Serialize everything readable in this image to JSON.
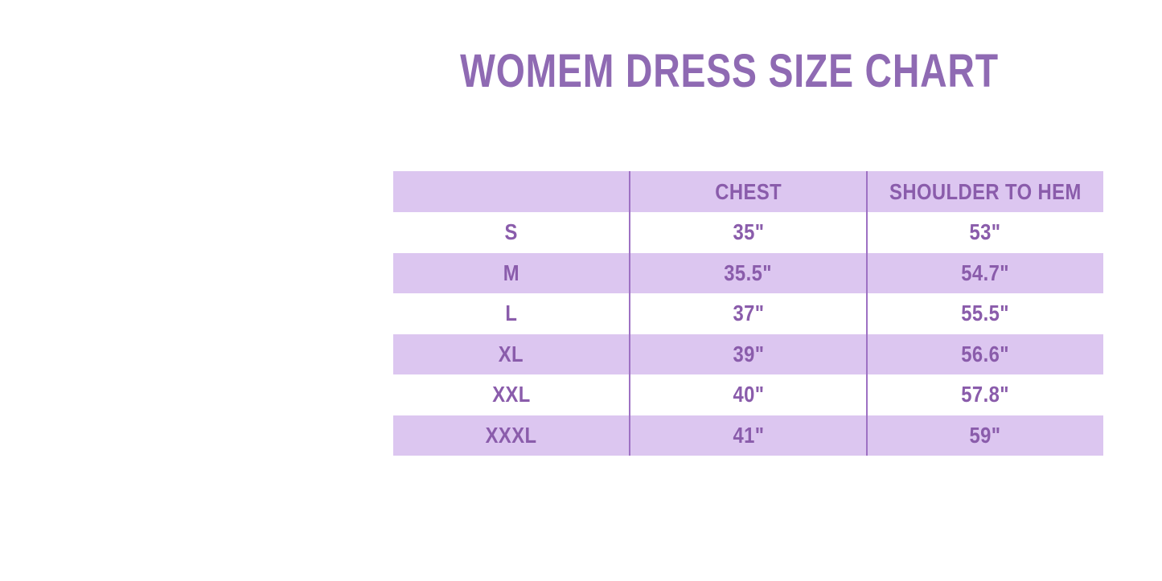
{
  "page": {
    "title": "WOMEM DRESS SIZE CHART"
  },
  "colors": {
    "title_text": "#8f6ab3",
    "cell_text": "#8a5cab",
    "row_shaded_bg": "#dcc6f0",
    "divider": "#9e71c3",
    "page_bg": "#ffffff"
  },
  "chart_data": {
    "type": "table",
    "title": "WOMEM DRESS SIZE CHART",
    "columns": [
      "",
      "CHEST",
      "SHOULDER TO HEM"
    ],
    "rows": [
      [
        "S",
        "35\"",
        "53\""
      ],
      [
        "M",
        "35.5\"",
        "54.7\""
      ],
      [
        "L",
        "37\"",
        "55.5\""
      ],
      [
        "XL",
        "39\"",
        "56.6\""
      ],
      [
        "XXL",
        "40\"",
        "57.8\""
      ],
      [
        "XXXL",
        "41\"",
        "59\""
      ]
    ],
    "layout": {
      "header_shaded": true,
      "body_shading": "alternating starting with unshaded",
      "grid": "vertical column dividers only, no horizontal borders, no outer border"
    }
  }
}
